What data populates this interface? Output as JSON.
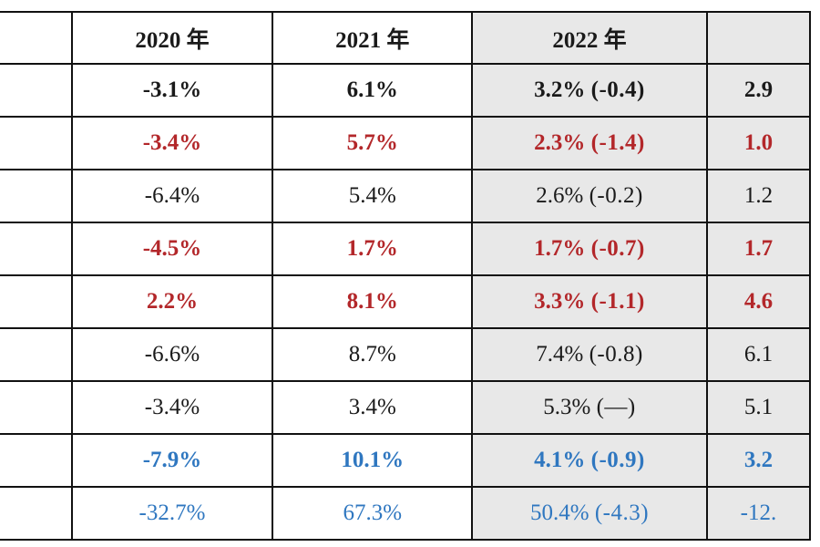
{
  "header": {
    "col_2020": "2020 年",
    "col_2021": "2021 年",
    "col_2022": "2022 年",
    "col_2023": ""
  },
  "rows": [
    {
      "color": "black",
      "bold": true,
      "v2020": "-3.1%",
      "v2021": "6.1%",
      "v2022": "3.2%",
      "v2022_change": "(-0.4)",
      "v2023": "2.9"
    },
    {
      "color": "red",
      "bold": true,
      "v2020": "-3.4%",
      "v2021": "5.7%",
      "v2022": "2.3%",
      "v2022_change": "(-1.4)",
      "v2023": "1.0"
    },
    {
      "color": "black",
      "bold": false,
      "v2020": "-6.4%",
      "v2021": "5.4%",
      "v2022": "2.6%",
      "v2022_change": "(-0.2)",
      "v2023": "1.2"
    },
    {
      "color": "red",
      "bold": true,
      "v2020": "-4.5%",
      "v2021": "1.7%",
      "v2022": "1.7%",
      "v2022_change": "(-0.7)",
      "v2023": "1.7"
    },
    {
      "color": "red",
      "bold": true,
      "v2020": "2.2%",
      "v2021": "8.1%",
      "v2022": "3.3%",
      "v2022_change": "(-1.1)",
      "v2023": "4.6"
    },
    {
      "color": "black",
      "bold": false,
      "v2020": "-6.6%",
      "v2021": "8.7%",
      "v2022": "7.4%",
      "v2022_change": "(-0.8)",
      "v2023": "6.1"
    },
    {
      "color": "black",
      "bold": false,
      "v2020": "-3.4%",
      "v2021": "3.4%",
      "v2022": "5.3%",
      "v2022_change": "(—)",
      "v2023": "5.1"
    },
    {
      "color": "blue",
      "bold": true,
      "v2020": "-7.9%",
      "v2021": "10.1%",
      "v2022": "4.1%",
      "v2022_change": "(-0.9)",
      "v2023": "3.2"
    },
    {
      "color": "blue",
      "bold": false,
      "v2020": "-32.7%",
      "v2021": "67.3%",
      "v2022": "50.4%",
      "v2022_change": "(-4.3)",
      "v2023": "-12."
    }
  ]
}
